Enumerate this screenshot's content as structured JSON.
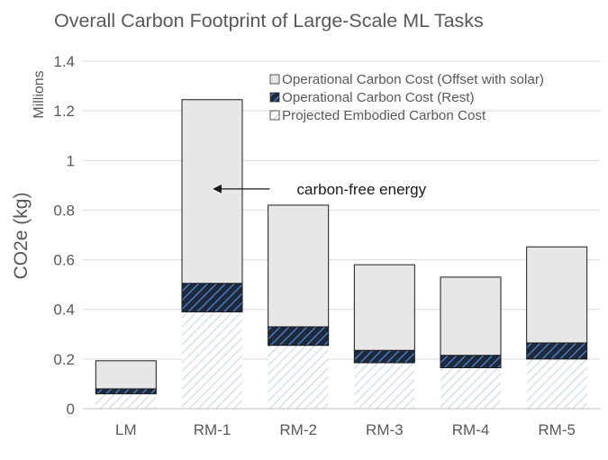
{
  "chart_data": {
    "type": "bar",
    "stacked": true,
    "title": "Overall Carbon Footprint of Large-Scale ML Tasks",
    "ylabel": "CO2e (kg)",
    "yunit": "Millions",
    "xlabel": "",
    "categories": [
      "LM",
      "RM-1",
      "RM-2",
      "RM-3",
      "RM-4",
      "RM-5"
    ],
    "ylim": [
      0,
      1.4
    ],
    "yticks": [
      "0",
      "0.2",
      "0.4",
      "0.6",
      "0.8",
      "1",
      "1.2",
      "1.4"
    ],
    "ytick_values": [
      0,
      0.2,
      0.4,
      0.6,
      0.8,
      1.0,
      1.2,
      1.4
    ],
    "grid": true,
    "legend_position": "top-right",
    "series": [
      {
        "name": "Projected Embodied Carbon Cost",
        "values": [
          0.06,
          0.39,
          0.255,
          0.185,
          0.165,
          0.2
        ],
        "fill": "hatch-light",
        "color": "#d6e0ec"
      },
      {
        "name": "Operational Carbon Cost (Rest)",
        "values": [
          0.02,
          0.115,
          0.075,
          0.05,
          0.05,
          0.065
        ],
        "fill": "hatch-dark",
        "color": "#1f3864"
      },
      {
        "name": "Operational Carbon Cost (Offset with solar)",
        "values": [
          0.113,
          0.74,
          0.49,
          0.345,
          0.315,
          0.387
        ],
        "fill": "solid",
        "color": "#e7e7e7"
      }
    ],
    "legend_order": [
      2,
      1,
      0
    ],
    "annotation": {
      "text": "carbon-free energy",
      "category": "RM-1",
      "y": 0.9
    }
  }
}
